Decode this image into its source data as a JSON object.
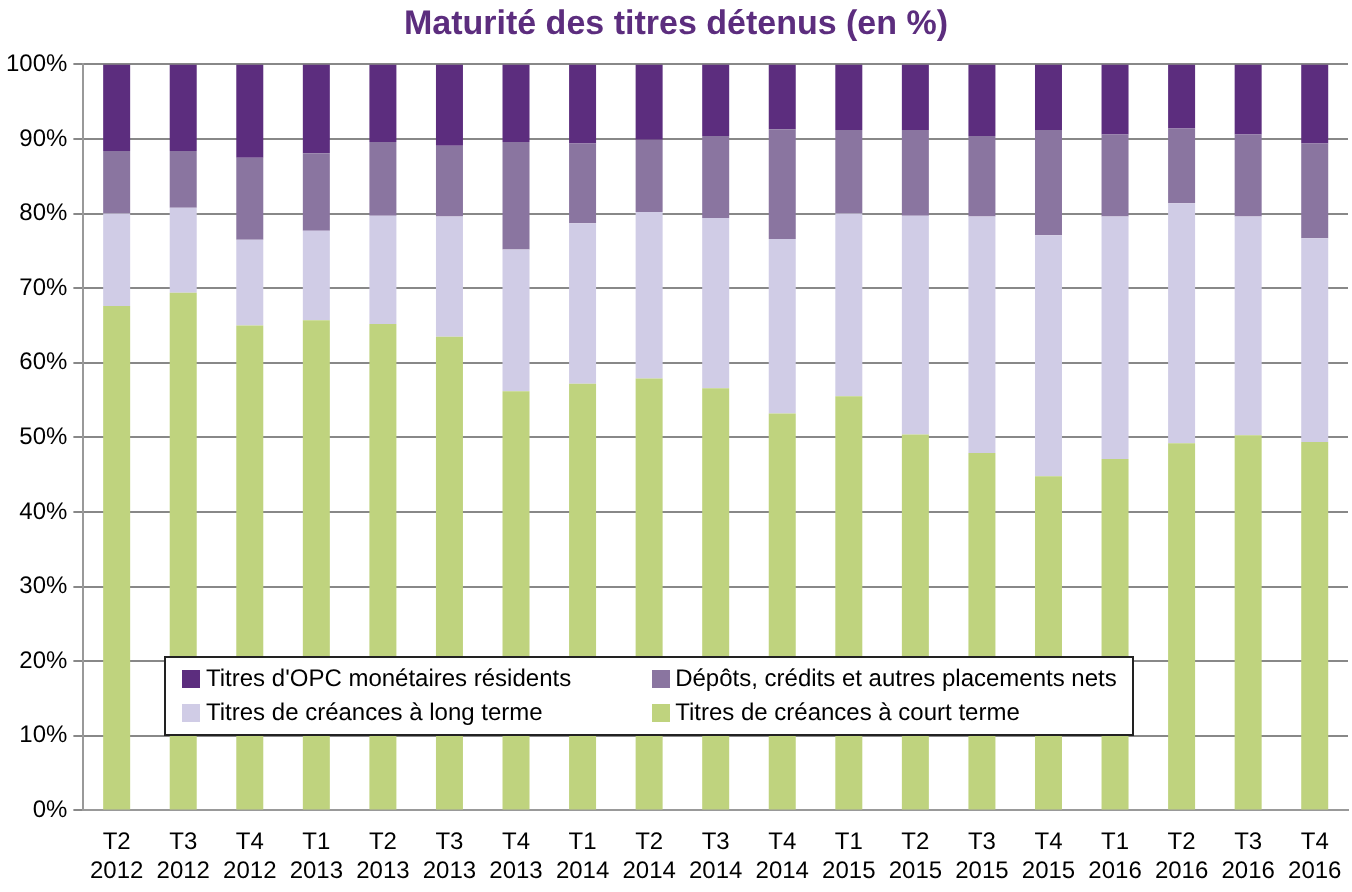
{
  "chart_data": {
    "type": "bar",
    "title": "Maturité des titres détenus (en %)",
    "stacked": true,
    "categories": [
      "T2 2012",
      "T3 2012",
      "T4 2012",
      "T1 2013",
      "T2 2013",
      "T3 2013",
      "T4 2013",
      "T1 2014",
      "T2 2014",
      "T3 2014",
      "T4 2014",
      "T1 2015",
      "T2 2015",
      "T3 2015",
      "T4 2015",
      "T1 2016",
      "T2 2016",
      "T3 2016",
      "T4 2016"
    ],
    "series": [
      {
        "name": "Titres de créances à court terme",
        "color": "#bfd37e",
        "values": [
          67.6,
          69.4,
          65.0,
          65.7,
          65.2,
          63.5,
          56.2,
          57.2,
          57.9,
          56.6,
          53.2,
          55.5,
          50.4,
          47.9,
          44.8,
          47.1,
          49.2,
          50.3,
          49.4
        ]
      },
      {
        "name": "Titres de créances à long terme",
        "color": "#d0cce6",
        "values": [
          12.4,
          11.4,
          11.5,
          12.0,
          14.5,
          16.1,
          19.0,
          21.5,
          22.3,
          22.8,
          23.4,
          24.5,
          29.3,
          31.7,
          32.3,
          32.5,
          32.2,
          29.3,
          27.3
        ]
      },
      {
        "name": "Dépôts, crédits et autres placements nets",
        "color": "#8a75a0",
        "values": [
          8.4,
          7.6,
          11.0,
          10.4,
          9.9,
          9.5,
          14.4,
          10.7,
          9.7,
          11.0,
          14.7,
          11.2,
          11.5,
          10.8,
          14.1,
          11.0,
          10.0,
          11.0,
          12.7
        ]
      },
      {
        "name": "Titres d'OPC monétaires résidents",
        "color": "#5c2d7e",
        "values": [
          11.6,
          11.6,
          12.5,
          11.9,
          10.4,
          10.9,
          10.4,
          10.6,
          10.1,
          9.6,
          8.7,
          8.8,
          8.8,
          9.6,
          8.8,
          9.4,
          8.6,
          9.4,
          10.6
        ]
      }
    ],
    "ylim": [
      0,
      100
    ],
    "yticks": [
      {
        "value": 0,
        "label": "0%"
      },
      {
        "value": 10,
        "label": "10%"
      },
      {
        "value": 20,
        "label": "20%"
      },
      {
        "value": 30,
        "label": "30%"
      },
      {
        "value": 40,
        "label": "40%"
      },
      {
        "value": 50,
        "label": "50%"
      },
      {
        "value": 60,
        "label": "60%"
      },
      {
        "value": 70,
        "label": "70%"
      },
      {
        "value": 80,
        "label": "80%"
      },
      {
        "value": 90,
        "label": "90%"
      },
      {
        "value": 100,
        "label": "100%"
      }
    ],
    "grid": "y",
    "legend": "bottom"
  }
}
